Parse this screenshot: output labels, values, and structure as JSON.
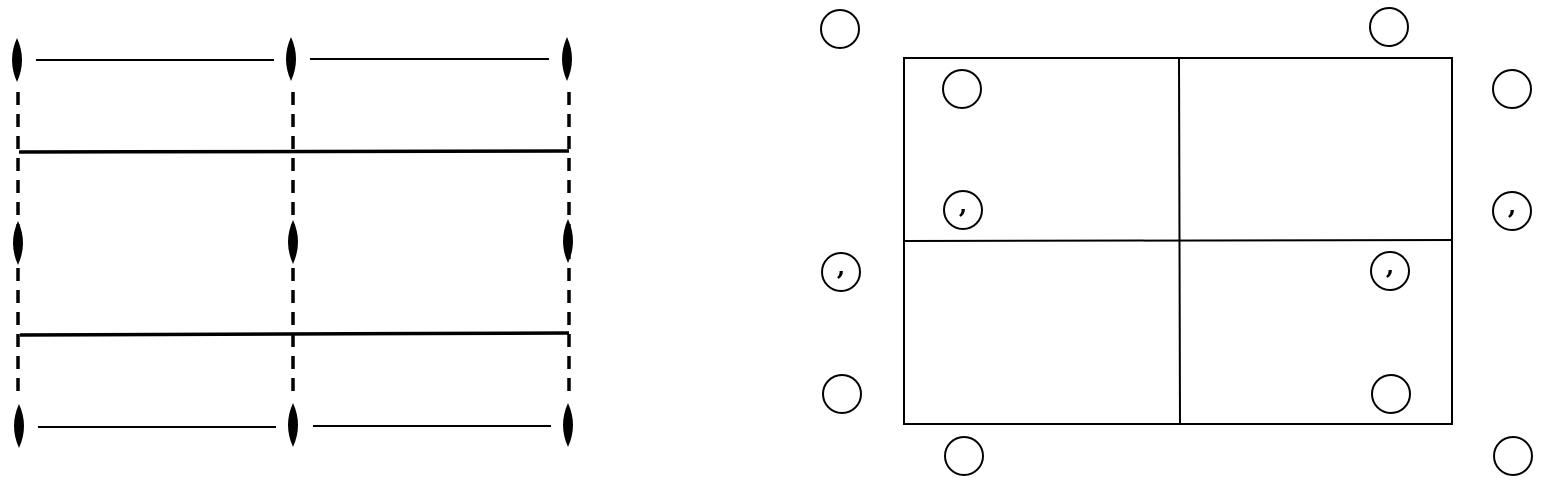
{
  "figure": {
    "left_panel": {
      "symbol": "lens",
      "solid_edges": "thin",
      "inner_edges": "thick",
      "vertical_edges": "dashed"
    },
    "right_panel": {
      "symbol": "circle",
      "comma_marker": ","
    }
  }
}
